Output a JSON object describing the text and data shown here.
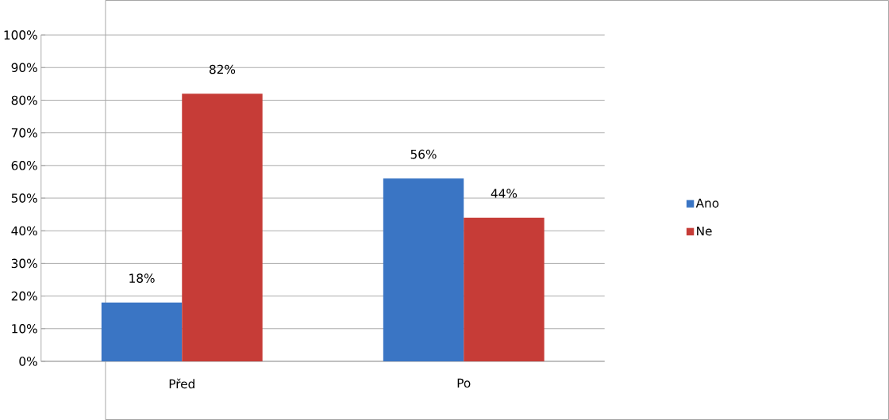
{
  "chart_data": {
    "type": "bar",
    "categories": [
      "Před",
      "Po"
    ],
    "series": [
      {
        "name": "Ano",
        "color": "#3a75c4",
        "values": [
          18,
          56
        ],
        "value_labels": [
          "18%",
          "56%"
        ]
      },
      {
        "name": "Ne",
        "color": "#c63c37",
        "values": [
          82,
          44
        ],
        "value_labels": [
          "82%",
          "44%"
        ]
      }
    ],
    "ylim": [
      0,
      100
    ],
    "yticks": [
      {
        "value": 0,
        "label": "0%"
      },
      {
        "value": 10,
        "label": "10%"
      },
      {
        "value": 20,
        "label": "20%"
      },
      {
        "value": 30,
        "label": "30%"
      },
      {
        "value": 40,
        "label": "40%"
      },
      {
        "value": 50,
        "label": "50%"
      },
      {
        "value": 60,
        "label": "60%"
      },
      {
        "value": 70,
        "label": "70%"
      },
      {
        "value": 80,
        "label": "80%"
      },
      {
        "value": 90,
        "label": "90%"
      },
      {
        "value": 100,
        "label": "100%"
      }
    ],
    "grid": "y",
    "legend": "right"
  }
}
